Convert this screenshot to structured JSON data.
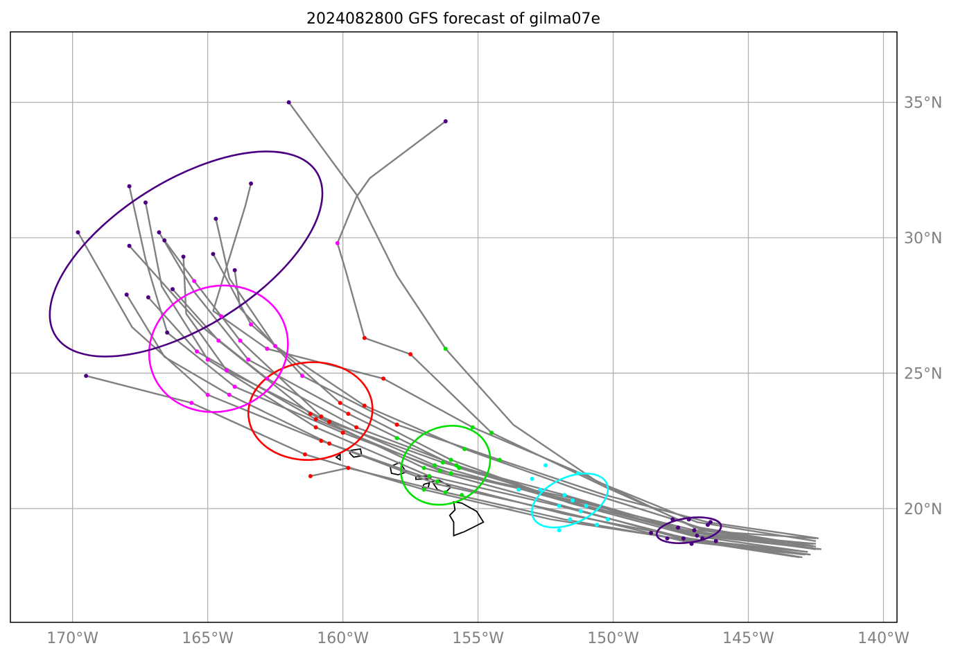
{
  "title": "2024082800 GFS forecast of gilma07e",
  "map": {
    "lon_range": [
      -172.3,
      -139.5
    ],
    "lat_range": [
      15.8,
      37.6
    ],
    "x_ticks": [
      {
        "lon": -170,
        "label": "170°W"
      },
      {
        "lon": -165,
        "label": "165°W"
      },
      {
        "lon": -160,
        "label": "160°W"
      },
      {
        "lon": -155,
        "label": "155°W"
      },
      {
        "lon": -150,
        "label": "150°W"
      },
      {
        "lon": -145,
        "label": "145°W"
      },
      {
        "lon": -140,
        "label": "140°W"
      }
    ],
    "y_ticks": [
      {
        "lat": 20,
        "label": "20°N"
      },
      {
        "lat": 25,
        "label": "25°N"
      },
      {
        "lat": 30,
        "label": "30°N"
      },
      {
        "lat": 35,
        "label": "35°N"
      }
    ],
    "grid": true,
    "tick_label_color": "#808080",
    "grid_color": "#b0b0b0",
    "track_color": "#808080",
    "coastline_color": "#000000"
  },
  "chart_data": {
    "type": "scatter",
    "description_free": true,
    "tracks": [
      [
        [
          -142.5,
          18.9
        ],
        [
          -147,
          19.2
        ],
        [
          -151.5,
          20.3
        ],
        [
          -156,
          21.3
        ],
        [
          -160,
          22.8
        ],
        [
          -164,
          24.5
        ],
        [
          -166.5,
          26.5
        ],
        [
          -167.3,
          29.2
        ],
        [
          -167.9,
          31.9
        ]
      ],
      [
        [
          -142.5,
          18.7
        ],
        [
          -147,
          19.1
        ],
        [
          -151.8,
          20.5
        ],
        [
          -156.3,
          21.7
        ],
        [
          -160.5,
          23.2
        ],
        [
          -164.3,
          25.1
        ],
        [
          -165.8,
          27.2
        ],
        [
          -165.9,
          29.3
        ]
      ],
      [
        [
          -142.3,
          18.5
        ],
        [
          -146.8,
          19
        ],
        [
          -151,
          20.1
        ],
        [
          -155.7,
          21.5
        ],
        [
          -159.8,
          23.5
        ],
        [
          -163.5,
          25.5
        ],
        [
          -165.5,
          28
        ],
        [
          -166.8,
          30.2
        ]
      ],
      [
        [
          -142.7,
          18.3
        ],
        [
          -147.2,
          18.9
        ],
        [
          -151.8,
          19.8
        ],
        [
          -156.5,
          21
        ],
        [
          -160.8,
          22.5
        ],
        [
          -165,
          24.2
        ],
        [
          -167.8,
          26.7
        ],
        [
          -169.8,
          30.2
        ]
      ],
      [
        [
          -143,
          18.2
        ],
        [
          -147.3,
          18.9
        ],
        [
          -152,
          20.1
        ],
        [
          -156.8,
          21.2
        ],
        [
          -161,
          23
        ],
        [
          -165,
          25.5
        ],
        [
          -166.7,
          28.2
        ],
        [
          -167.3,
          31.3
        ]
      ],
      [
        [
          -142.5,
          18.6
        ],
        [
          -146.8,
          19.3
        ],
        [
          -151.3,
          20.7
        ],
        [
          -155.5,
          22.2
        ],
        [
          -159.2,
          23.8
        ],
        [
          -162.5,
          26
        ],
        [
          -164.2,
          28.5
        ],
        [
          -164.7,
          30.7
        ]
      ],
      [
        [
          -142.8,
          18.4
        ],
        [
          -147.1,
          19
        ],
        [
          -151.6,
          20.2
        ],
        [
          -156,
          21.8
        ],
        [
          -160.1,
          23.9
        ],
        [
          -163.4,
          26.8
        ],
        [
          -164.8,
          29.4
        ]
      ],
      [
        [
          -142.5,
          18.8
        ],
        [
          -146.9,
          19.5
        ],
        [
          -150.6,
          21
        ],
        [
          -153.7,
          23.1
        ],
        [
          -156.2,
          25.9
        ],
        [
          -158,
          28.6
        ],
        [
          -159.5,
          31.6
        ],
        [
          -162,
          35
        ]
      ],
      [
        [
          -142.4,
          18.5
        ],
        [
          -146.7,
          19.2
        ],
        [
          -150.3,
          20.8
        ],
        [
          -154.5,
          22.8
        ],
        [
          -157.5,
          25.7
        ],
        [
          -159.2,
          26.3
        ],
        [
          -159.9,
          28.8
        ],
        [
          -160.2,
          29.8
        ],
        [
          -159.5,
          31.5
        ],
        [
          -159,
          32.2
        ],
        [
          -156.2,
          34.3
        ]
      ],
      [
        [
          -142.6,
          18.6
        ],
        [
          -147,
          19.3
        ],
        [
          -151.2,
          21.3
        ],
        [
          -155.2,
          23
        ],
        [
          -158.5,
          24.8
        ],
        [
          -162.8,
          25.9
        ],
        [
          -164.8,
          27.3
        ],
        [
          -163.6,
          31.2
        ],
        [
          -163.4,
          32
        ]
      ],
      [
        [
          -142.9,
          18.3
        ],
        [
          -147.4,
          18.8
        ],
        [
          -152,
          19.9
        ],
        [
          -156.5,
          20.9
        ],
        [
          -160.5,
          22.4
        ],
        [
          -164.2,
          24.2
        ],
        [
          -166.6,
          25.6
        ],
        [
          -168,
          27.9
        ]
      ],
      [
        [
          -143.1,
          18.2
        ],
        [
          -147.7,
          18.9
        ],
        [
          -152.3,
          19.6
        ],
        [
          -157,
          20.7
        ],
        [
          -161.4,
          22
        ],
        [
          -165.6,
          23.9
        ],
        [
          -169.5,
          24.9
        ]
      ],
      [
        [
          -142.6,
          18.7
        ],
        [
          -147,
          19
        ],
        [
          -151.6,
          20.4
        ],
        [
          -156.4,
          21.4
        ],
        [
          -161,
          23.3
        ],
        [
          -165.4,
          25.8
        ],
        [
          -167.2,
          27.8
        ]
      ],
      [
        [
          -142.8,
          18.4
        ],
        [
          -147.5,
          18.9
        ],
        [
          -152.2,
          20.2
        ],
        [
          -157,
          21.5
        ],
        [
          -161.2,
          23.5
        ],
        [
          -164.6,
          26.2
        ],
        [
          -166.3,
          28.1
        ]
      ],
      [
        [
          -142.4,
          18.9
        ],
        [
          -146.5,
          19.5
        ],
        [
          -150.3,
          20.5
        ],
        [
          -154.2,
          21.8
        ],
        [
          -158,
          23.1
        ],
        [
          -161.5,
          24.9
        ],
        [
          -163.8,
          27.4
        ],
        [
          -164,
          28.8
        ]
      ],
      [
        [
          -142.7,
          18.3
        ],
        [
          -147.2,
          18.8
        ],
        [
          -151.8,
          19.6
        ],
        [
          -156.2,
          20.6
        ],
        [
          -159.8,
          21.5
        ],
        [
          -161.2,
          21.2
        ]
      ],
      [
        [
          -142.5,
          18.5
        ],
        [
          -147,
          19.1
        ],
        [
          -151.4,
          20.2
        ],
        [
          -155.8,
          21.6
        ],
        [
          -159.5,
          23
        ],
        [
          -162.8,
          24.8
        ],
        [
          -165.2,
          26.7
        ],
        [
          -167.9,
          29.7
        ]
      ],
      [
        [
          -142.9,
          18.6
        ],
        [
          -147.3,
          19.2
        ],
        [
          -151.9,
          20.3
        ],
        [
          -156.6,
          21.6
        ],
        [
          -160.8,
          23.4
        ],
        [
          -163.8,
          26.2
        ],
        [
          -165.5,
          28.4
        ],
        [
          -166.6,
          29.9
        ]
      ]
    ],
    "points": [
      {
        "color": "#4b0082",
        "coords": [
          [
            -147,
            19.2
          ],
          [
            -146.5,
            19.4
          ],
          [
            -147.4,
            18.9
          ],
          [
            -146.9,
            19.0
          ],
          [
            -147.6,
            19.3
          ],
          [
            -146.2,
            18.8
          ],
          [
            -147.8,
            19.6
          ],
          [
            -148.6,
            19.1
          ],
          [
            -146.4,
            19.5
          ],
          [
            -147.2,
            19.6
          ],
          [
            -146.7,
            18.9
          ],
          [
            -147.1,
            18.7
          ],
          [
            -148.0,
            18.9
          ]
        ]
      },
      {
        "color": "#00ffff",
        "coords": [
          [
            -151.5,
            20.3
          ],
          [
            -151.8,
            20.5
          ],
          [
            -152,
            20.1
          ],
          [
            -151,
            20.1
          ],
          [
            -150.6,
            19.4
          ],
          [
            -152.7,
            20.7
          ],
          [
            -151.3,
            21.3
          ],
          [
            -152.5,
            21.6
          ],
          [
            -153.5,
            20.7
          ],
          [
            -151.6,
            19.6
          ],
          [
            -150.2,
            19.6
          ],
          [
            -152.0,
            19.2
          ],
          [
            -153.0,
            21.1
          ],
          [
            -151.2,
            19.9
          ]
        ]
      },
      {
        "color": "#00e000",
        "coords": [
          [
            -156,
            21.3
          ],
          [
            -156.3,
            21.7
          ],
          [
            -155.7,
            21.5
          ],
          [
            -156.5,
            21
          ],
          [
            -156.8,
            21.2
          ],
          [
            -155.5,
            22.2
          ],
          [
            -156,
            21.8
          ],
          [
            -156.2,
            25.9
          ],
          [
            -154.5,
            22.8
          ],
          [
            -155.2,
            23
          ],
          [
            -157,
            20.7
          ],
          [
            -156.4,
            21.4
          ],
          [
            -157,
            21.5
          ],
          [
            -154.2,
            21.8
          ],
          [
            -156.2,
            20.6
          ],
          [
            -155.8,
            21.6
          ],
          [
            -156.6,
            21.6
          ],
          [
            -158.0,
            22.6
          ],
          [
            -155.6,
            20.5
          ]
        ]
      },
      {
        "color": "#ff0000",
        "coords": [
          [
            -160,
            22.8
          ],
          [
            -160.5,
            23.2
          ],
          [
            -159.8,
            23.5
          ],
          [
            -160.8,
            22.5
          ],
          [
            -161,
            23
          ],
          [
            -159.2,
            23.8
          ],
          [
            -160.1,
            23.9
          ],
          [
            -157.5,
            25.7
          ],
          [
            -159.2,
            26.3
          ],
          [
            -158.5,
            24.8
          ],
          [
            -160.5,
            22.4
          ],
          [
            -161.4,
            22
          ],
          [
            -161,
            23.3
          ],
          [
            -161.2,
            23.5
          ],
          [
            -158,
            23.1
          ],
          [
            -159.8,
            21.5
          ],
          [
            -161.2,
            21.2
          ],
          [
            -159.5,
            23
          ],
          [
            -160.8,
            23.4
          ],
          [
            -162.8,
            25.9
          ]
        ]
      },
      {
        "color": "#ff00ff",
        "coords": [
          [
            -164,
            24.5
          ],
          [
            -164.3,
            25.1
          ],
          [
            -163.5,
            25.5
          ],
          [
            -165,
            24.2
          ],
          [
            -165,
            25.5
          ],
          [
            -162.5,
            26
          ],
          [
            -163.4,
            26.8
          ],
          [
            -160.2,
            29.8
          ],
          [
            -162.8,
            25.9
          ],
          [
            -164.2,
            24.2
          ],
          [
            -165.6,
            23.9
          ],
          [
            -165.4,
            25.8
          ],
          [
            -164.6,
            26.2
          ],
          [
            -161.5,
            24.9
          ],
          [
            -162.8,
            24.8
          ],
          [
            -163.8,
            26.2
          ],
          [
            -165.5,
            28.4
          ],
          [
            -164.5,
            27.1
          ]
        ]
      },
      {
        "color": "#4b0082",
        "coords": [
          [
            -167.9,
            31.9
          ],
          [
            -165.9,
            29.3
          ],
          [
            -166.8,
            30.2
          ],
          [
            -169.8,
            30.2
          ],
          [
            -167.3,
            31.3
          ],
          [
            -164.7,
            30.7
          ],
          [
            -164.8,
            29.4
          ],
          [
            -162,
            35
          ],
          [
            -156.2,
            34.3
          ],
          [
            -163.4,
            32
          ],
          [
            -168,
            27.9
          ],
          [
            -169.5,
            24.9
          ],
          [
            -167.2,
            27.8
          ],
          [
            -166.3,
            28.1
          ],
          [
            -164,
            28.8
          ],
          [
            -167.9,
            29.7
          ],
          [
            -166.6,
            29.9
          ],
          [
            -166.5,
            26.5
          ]
        ]
      }
    ],
    "ellipses": [
      {
        "color": "#4b0082",
        "center": [
          -147.2,
          19.2
        ],
        "rx_lon": 1.2,
        "ry_lat": 0.45,
        "angle_deg": -8
      },
      {
        "color": "#00ffff",
        "center": [
          -151.6,
          20.3
        ],
        "rx_lon": 1.5,
        "ry_lat": 0.85,
        "angle_deg": -25
      },
      {
        "color": "#00e000",
        "center": [
          -156.2,
          21.6
        ],
        "rx_lon": 1.7,
        "ry_lat": 1.4,
        "angle_deg": -25
      },
      {
        "color": "#ff0000",
        "center": [
          -161.2,
          23.6
        ],
        "rx_lon": 2.3,
        "ry_lat": 1.8,
        "angle_deg": -5
      },
      {
        "color": "#ff00ff",
        "center": [
          -164.6,
          25.9
        ],
        "rx_lon": 2.6,
        "ry_lat": 2.3,
        "angle_deg": -20
      },
      {
        "color": "#4b0082",
        "center": [
          -165.8,
          29.4
        ],
        "rx_lon": 5.7,
        "ry_lat": 2.7,
        "angle_deg": -32
      }
    ],
    "islands": [
      [
        [
          -160.25,
          21.9
        ],
        [
          -160.1,
          22.0
        ],
        [
          -160.1,
          21.8
        ],
        [
          -160.25,
          21.9
        ]
      ],
      [
        [
          -159.7,
          22.15
        ],
        [
          -159.35,
          22.2
        ],
        [
          -159.3,
          21.95
        ],
        [
          -159.6,
          21.9
        ],
        [
          -159.75,
          22.05
        ],
        [
          -159.7,
          22.15
        ]
      ],
      [
        [
          -158.25,
          21.55
        ],
        [
          -157.9,
          21.7
        ],
        [
          -157.65,
          21.35
        ],
        [
          -157.95,
          21.25
        ],
        [
          -158.2,
          21.3
        ],
        [
          -158.25,
          21.55
        ]
      ],
      [
        [
          -157.3,
          21.2
        ],
        [
          -156.75,
          21.2
        ],
        [
          -156.75,
          21.1
        ],
        [
          -157.3,
          21.08
        ],
        [
          -157.3,
          21.2
        ]
      ],
      [
        [
          -157.0,
          20.9
        ],
        [
          -156.8,
          20.95
        ],
        [
          -156.85,
          20.75
        ],
        [
          -157.05,
          20.78
        ],
        [
          -157.0,
          20.9
        ]
      ],
      [
        [
          -156.7,
          21.0
        ],
        [
          -156.45,
          21.05
        ],
        [
          -156.0,
          20.8
        ],
        [
          -156.2,
          20.6
        ],
        [
          -156.5,
          20.7
        ],
        [
          -156.7,
          21.0
        ]
      ],
      [
        [
          -155.9,
          20.25
        ],
        [
          -155.6,
          20.2
        ],
        [
          -155.05,
          19.9
        ],
        [
          -154.8,
          19.5
        ],
        [
          -155.5,
          19.15
        ],
        [
          -155.9,
          19.0
        ],
        [
          -155.9,
          19.5
        ],
        [
          -156.05,
          19.75
        ],
        [
          -155.85,
          19.95
        ],
        [
          -155.9,
          20.25
        ]
      ]
    ]
  }
}
